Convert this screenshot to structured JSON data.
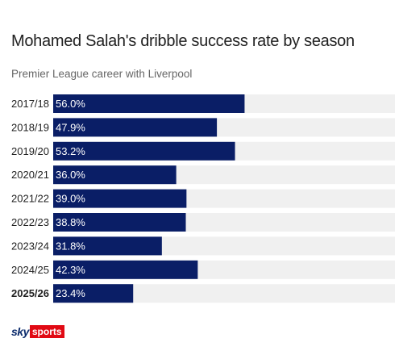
{
  "chart_data": {
    "type": "bar",
    "orientation": "horizontal",
    "title": "Mohamed Salah's dribble success rate by season",
    "subtitle": "Premier League career with Liverpool",
    "categories": [
      "2017/18",
      "2018/19",
      "2019/20",
      "2020/21",
      "2021/22",
      "2022/23",
      "2023/24",
      "2024/25",
      "2025/26"
    ],
    "values": [
      56.0,
      47.9,
      53.2,
      36.0,
      39.0,
      38.8,
      31.8,
      42.3,
      23.4
    ],
    "value_labels": [
      "56.0%",
      "47.9%",
      "53.2%",
      "36.0%",
      "39.0%",
      "38.8%",
      "31.8%",
      "42.3%",
      "23.4%"
    ],
    "highlighted_category": "2025/26",
    "xlim": [
      0,
      100
    ],
    "xlabel": "",
    "ylabel": "",
    "grid": false,
    "bar_color": "#0a1e66",
    "track_color": "#f0f0f0"
  },
  "branding": {
    "logo_sky": "sky",
    "logo_sports": "sports",
    "logo_sports_color": "#e10a14"
  }
}
